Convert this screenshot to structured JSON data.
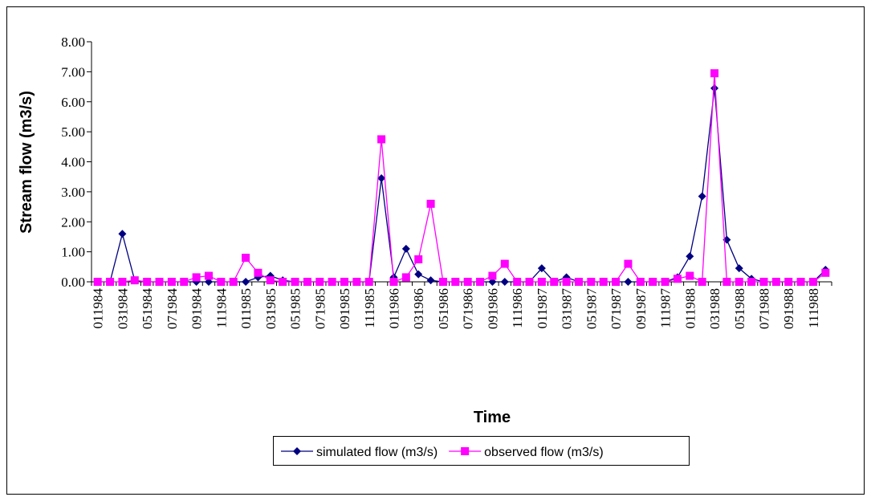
{
  "chart_data": {
    "type": "line",
    "x_label": "Time",
    "y_label": "Stream flow (m3/s)",
    "categories": [
      "011984",
      null,
      "031984",
      null,
      "051984",
      null,
      "071984",
      null,
      "091984",
      null,
      "111984",
      null,
      "011985",
      null,
      "031985",
      null,
      "051985",
      null,
      "071985",
      null,
      "091985",
      null,
      "111985",
      null,
      "011986",
      null,
      "031986",
      null,
      "051986",
      null,
      "071986",
      null,
      "091986",
      null,
      "111986",
      null,
      "011987",
      null,
      "031987",
      null,
      "051987",
      null,
      "071987",
      null,
      "091987",
      null,
      "111987",
      null,
      "011988",
      null,
      "031988",
      null,
      "051988",
      null,
      "071988",
      null,
      "091988",
      null,
      "111988",
      null
    ],
    "series": [
      {
        "name": "simulated flow (m3/s)",
        "color": "#000080",
        "marker": "diamond",
        "values": [
          0,
          0,
          1.6,
          0.05,
          0,
          0,
          0,
          0,
          0,
          0,
          0,
          0,
          0,
          0.15,
          0.2,
          0.05,
          0,
          0,
          0,
          0,
          0,
          0,
          0,
          3.45,
          0.15,
          1.1,
          0.25,
          0.05,
          0,
          0,
          0,
          0,
          0,
          0,
          0,
          0,
          0.45,
          0,
          0.15,
          0,
          0,
          0,
          0,
          0,
          0,
          0,
          0,
          0.15,
          0.85,
          2.85,
          6.45,
          1.4,
          0.45,
          0.1,
          0,
          0,
          0,
          0,
          0,
          0.4
        ]
      },
      {
        "name": "observed flow (m3/s)",
        "color": "#ff00ff",
        "marker": "square",
        "values": [
          0,
          0,
          0,
          0.05,
          0,
          0,
          0,
          0,
          0.15,
          0.2,
          0,
          0,
          0.8,
          0.3,
          0.05,
          0,
          0,
          0,
          0,
          0,
          0,
          0,
          0,
          4.75,
          0,
          0.15,
          0.75,
          2.6,
          0,
          0,
          0,
          0,
          0.2,
          0.6,
          0,
          0,
          0,
          0,
          0,
          0,
          0,
          0,
          0,
          0.6,
          0,
          0,
          0,
          0.1,
          0.2,
          0,
          6.95,
          0,
          0,
          0,
          0,
          0,
          0,
          0,
          0,
          0.3
        ]
      }
    ],
    "ylim": [
      0,
      8
    ],
    "yticks": [
      {
        "value": 0,
        "label": "0.00"
      },
      {
        "value": 1,
        "label": "1.00"
      },
      {
        "value": 2,
        "label": "2.00"
      },
      {
        "value": 3,
        "label": "3.00"
      },
      {
        "value": 4,
        "label": "4.00"
      },
      {
        "value": 5,
        "label": "5.00"
      },
      {
        "value": 6,
        "label": "6.00"
      },
      {
        "value": 7,
        "label": "7.00"
      },
      {
        "value": 8,
        "label": "8.00"
      }
    ],
    "legend": "bottom",
    "grid": false
  }
}
